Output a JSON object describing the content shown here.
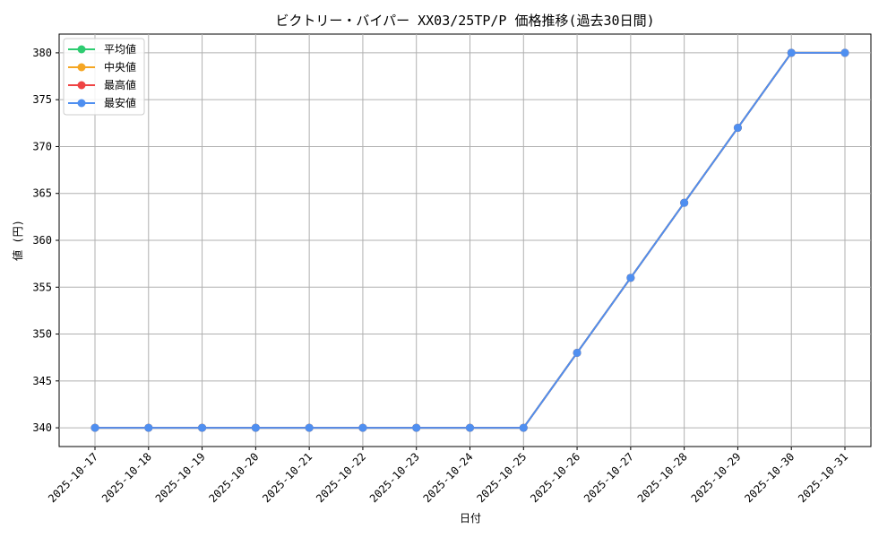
{
  "chart_data": {
    "type": "line",
    "title": "ビクトリー・バイパー XX03/25TP/P 価格推移(過去30日間)",
    "xlabel": "日付",
    "ylabel": "値 (円)",
    "categories": [
      "2025-10-17",
      "2025-10-18",
      "2025-10-19",
      "2025-10-20",
      "2025-10-21",
      "2025-10-22",
      "2025-10-23",
      "2025-10-24",
      "2025-10-25",
      "2025-10-26",
      "2025-10-27",
      "2025-10-28",
      "2025-10-29",
      "2025-10-30",
      "2025-10-31"
    ],
    "ylim": [
      338,
      382
    ],
    "yticks": [
      340,
      345,
      350,
      355,
      360,
      365,
      370,
      375,
      380
    ],
    "grid": true,
    "legend": "top-left",
    "series": [
      {
        "name": "平均値",
        "color": "#2ecc71",
        "values": [
          340,
          340,
          340,
          340,
          340,
          340,
          340,
          340,
          340,
          348,
          356,
          364,
          372,
          380,
          380
        ]
      },
      {
        "name": "中央値",
        "color": "#f5a623",
        "values": [
          340,
          340,
          340,
          340,
          340,
          340,
          340,
          340,
          340,
          348,
          356,
          364,
          372,
          380,
          380
        ]
      },
      {
        "name": "最高値",
        "color": "#ef4444",
        "values": [
          340,
          340,
          340,
          340,
          340,
          340,
          340,
          340,
          340,
          348,
          356,
          364,
          372,
          380,
          380
        ]
      },
      {
        "name": "最安値",
        "color": "#4f8ff0",
        "values": [
          340,
          340,
          340,
          340,
          340,
          340,
          340,
          340,
          340,
          348,
          356,
          364,
          372,
          380,
          380
        ]
      }
    ]
  }
}
